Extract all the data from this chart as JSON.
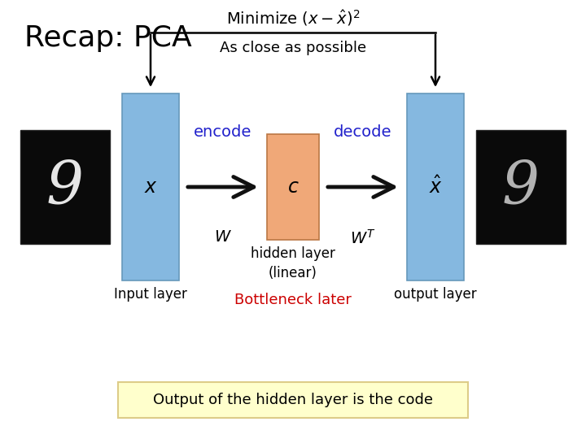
{
  "title": "Recap: PCA",
  "minimize_text": "Minimize $(x - \\hat{x})^2$",
  "as_close_text": "As close as possible",
  "encode_text": "encode",
  "decode_text": "decode",
  "x_label": "$x$",
  "c_label": "$c$",
  "xhat_label": "$\\hat{x}$",
  "W_label": "$W$",
  "WT_label": "$W^T$",
  "input_layer_text": "Input layer",
  "hidden_layer_text": "hidden layer\n(linear)",
  "output_layer_text": "output layer",
  "bottleneck_text": "Bottleneck later",
  "output_box_text": "Output of the hidden layer is the code",
  "bg_color": "#ffffff",
  "input_bar_color": "#85b8e0",
  "output_bar_color": "#85b8e0",
  "hidden_bar_color": "#f0a878",
  "encode_decode_color": "#2222cc",
  "bottleneck_color": "#cc0000",
  "arrow_color": "#111111",
  "output_box_bg": "#ffffcc",
  "output_box_border": "#ddcc88",
  "title_fontsize": 26,
  "label_fontsize": 13,
  "math_fontsize": 14
}
